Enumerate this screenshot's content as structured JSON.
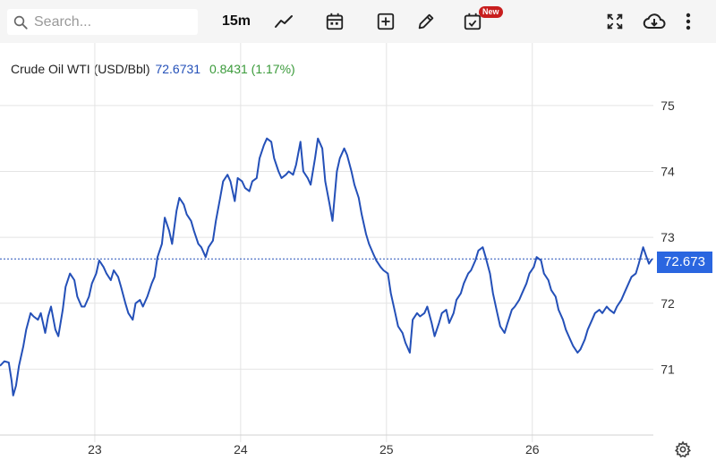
{
  "toolbar": {
    "search_placeholder": "Search...",
    "interval_label": "15m",
    "new_badge": "New",
    "icons": [
      "search-icon",
      "line-chart-icon",
      "calendar-icon",
      "add-box-icon",
      "pencil-icon",
      "event-check-icon",
      "fullscreen-icon",
      "cloud-download-icon",
      "more-vertical-icon"
    ]
  },
  "legend": {
    "name": "Crude Oil WTI (USD/Bbl)",
    "price": "72.6731",
    "change": "0.8431 (1.17%)"
  },
  "price_tag": "72.673",
  "colors": {
    "line": "#2450b8",
    "price_tag_bg": "#2a66e0",
    "change": "#3a9a3a",
    "toolbar_bg": "#f5f5f5",
    "badge": "#c81e1e"
  },
  "chart_data": {
    "type": "line",
    "title": "",
    "xlabel": "",
    "ylabel": "",
    "x_ticks": [
      {
        "value": 23,
        "label": "23"
      },
      {
        "value": 24,
        "label": "24"
      },
      {
        "value": 25,
        "label": "25"
      },
      {
        "value": 26,
        "label": "26"
      }
    ],
    "y_ticks": [
      {
        "value": 71,
        "label": "71"
      },
      {
        "value": 72,
        "label": "72"
      },
      {
        "value": 73,
        "label": "73"
      },
      {
        "value": 74,
        "label": "74"
      },
      {
        "value": 75,
        "label": "75"
      }
    ],
    "xlim": [
      22.35,
      26.83
    ],
    "ylim": [
      70.0,
      75.95
    ],
    "grid": true,
    "last_value": 72.673,
    "series": [
      {
        "x": [
          22.35,
          22.38,
          22.41,
          22.43,
          22.44,
          22.46,
          22.48,
          22.51,
          22.53,
          22.56,
          22.58,
          22.61,
          22.63,
          22.66,
          22.68,
          22.7,
          22.73,
          22.75,
          22.78,
          22.8,
          22.83,
          22.86,
          22.88,
          22.91,
          22.93,
          22.96,
          22.98,
          23.01,
          23.03,
          23.06,
          23.08,
          23.11,
          23.13,
          23.16,
          23.18,
          23.21,
          23.23,
          23.26,
          23.28,
          23.31,
          23.33,
          23.36,
          23.39,
          23.41,
          23.43,
          23.46,
          23.48,
          23.51,
          23.53,
          23.56,
          23.58,
          23.61,
          23.63,
          23.66,
          23.68,
          23.71,
          23.73,
          23.76,
          23.78,
          23.81,
          23.83,
          23.86,
          23.88,
          23.91,
          23.93,
          23.96,
          23.98,
          24.01,
          24.03,
          24.06,
          24.08,
          24.11,
          24.13,
          24.16,
          24.18,
          24.21,
          24.23,
          24.26,
          24.28,
          24.31,
          24.33,
          24.36,
          24.38,
          24.41,
          24.43,
          24.46,
          24.48,
          24.51,
          24.53,
          24.56,
          24.58,
          24.61,
          24.63,
          24.66,
          24.68,
          24.71,
          24.73,
          24.76,
          24.78,
          24.81,
          24.83,
          24.86,
          24.88,
          24.91,
          24.93,
          24.96,
          24.98,
          25.01,
          25.03,
          25.06,
          25.08,
          25.11,
          25.13,
          25.16,
          25.18,
          25.21,
          25.23,
          25.26,
          25.28,
          25.31,
          25.33,
          25.36,
          25.38,
          25.41,
          25.43,
          25.46,
          25.48,
          25.51,
          25.53,
          25.56,
          25.58,
          25.61,
          25.63,
          25.66,
          25.68,
          25.71,
          25.73,
          25.76,
          25.78,
          25.81,
          25.83,
          25.86,
          25.88,
          25.91,
          25.93,
          25.96,
          25.98,
          26.01,
          26.03,
          26.06,
          26.08,
          26.11,
          26.13,
          26.16,
          26.18,
          26.21,
          26.23,
          26.26,
          26.28,
          26.31,
          26.33,
          26.36,
          26.38,
          26.41,
          26.43,
          26.46,
          26.48,
          26.51,
          26.53,
          26.56,
          26.58,
          26.61,
          26.63,
          26.66,
          26.68,
          26.71,
          26.73,
          26.76,
          26.78,
          26.8,
          26.82
        ],
        "y": [
          71.05,
          71.12,
          71.1,
          70.82,
          70.6,
          70.75,
          71.05,
          71.35,
          71.6,
          71.85,
          71.8,
          71.75,
          71.85,
          71.55,
          71.8,
          71.95,
          71.6,
          71.5,
          71.9,
          72.25,
          72.45,
          72.35,
          72.1,
          71.95,
          71.95,
          72.1,
          72.3,
          72.45,
          72.65,
          72.55,
          72.45,
          72.35,
          72.5,
          72.4,
          72.25,
          72.0,
          71.85,
          71.75,
          72.0,
          72.05,
          71.95,
          72.1,
          72.3,
          72.4,
          72.7,
          72.9,
          73.3,
          73.1,
          72.9,
          73.4,
          73.6,
          73.5,
          73.35,
          73.25,
          73.1,
          72.9,
          72.85,
          72.7,
          72.85,
          72.95,
          73.25,
          73.6,
          73.85,
          73.95,
          73.85,
          73.55,
          73.9,
          73.85,
          73.75,
          73.7,
          73.85,
          73.9,
          74.2,
          74.4,
          74.5,
          74.45,
          74.2,
          74.0,
          73.9,
          73.95,
          74.0,
          73.95,
          74.1,
          74.45,
          74.0,
          73.9,
          73.8,
          74.2,
          74.5,
          74.35,
          73.85,
          73.5,
          73.25,
          74.0,
          74.2,
          74.35,
          74.25,
          74.0,
          73.8,
          73.6,
          73.35,
          73.05,
          72.9,
          72.75,
          72.65,
          72.55,
          72.5,
          72.45,
          72.15,
          71.85,
          71.65,
          71.55,
          71.4,
          71.25,
          71.75,
          71.85,
          71.8,
          71.85,
          71.95,
          71.7,
          71.5,
          71.7,
          71.85,
          71.9,
          71.7,
          71.85,
          72.05,
          72.15,
          72.3,
          72.45,
          72.5,
          72.65,
          72.8,
          72.85,
          72.7,
          72.45,
          72.15,
          71.85,
          71.65,
          71.55,
          71.7,
          71.9,
          71.95,
          72.05,
          72.15,
          72.3,
          72.45,
          72.55,
          72.7,
          72.65,
          72.45,
          72.35,
          72.2,
          72.1,
          71.9,
          71.75,
          71.6,
          71.45,
          71.35,
          71.25,
          71.3,
          71.45,
          71.6,
          71.75,
          71.85,
          71.9,
          71.85,
          71.95,
          71.9,
          71.85,
          71.95,
          72.05,
          72.15,
          72.3,
          72.4,
          72.45,
          72.6,
          72.85,
          72.72,
          72.6,
          72.67
        ]
      }
    ]
  }
}
